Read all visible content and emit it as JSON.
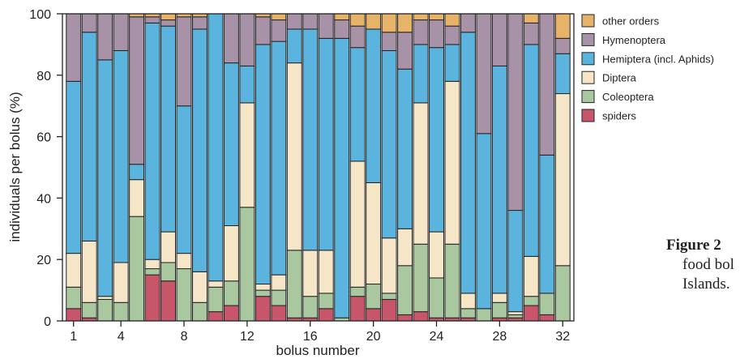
{
  "chart_data": {
    "type": "bar",
    "stacked": true,
    "percent": true,
    "xlabel": "bolus number",
    "ylabel": "individuals per bolus (%)",
    "ylim": [
      0,
      100
    ],
    "yticks": [
      0,
      20,
      40,
      60,
      80,
      100
    ],
    "xticks": [
      1,
      4,
      8,
      12,
      16,
      20,
      24,
      28,
      32
    ],
    "grid": false,
    "legend_position": "right",
    "categories": [
      1,
      2,
      3,
      4,
      5,
      6,
      7,
      8,
      9,
      10,
      11,
      12,
      13,
      14,
      15,
      16,
      17,
      18,
      19,
      20,
      21,
      22,
      23,
      24,
      25,
      26,
      27,
      28,
      29,
      30,
      31,
      32
    ],
    "series": [
      {
        "name": "spiders",
        "color": "#c8566a",
        "values": [
          4,
          1,
          0,
          0,
          0,
          15,
          13,
          0,
          0,
          3,
          5,
          0,
          8,
          5,
          1,
          1,
          4,
          0,
          8,
          4,
          7,
          2,
          3,
          1,
          1,
          1,
          0,
          1,
          1,
          5,
          2,
          0
        ]
      },
      {
        "name": "Coleoptera",
        "color": "#a9c89f",
        "values": [
          7,
          5,
          7,
          6,
          34,
          2,
          6,
          17,
          6,
          8,
          8,
          37,
          2,
          5,
          22,
          7,
          5,
          1,
          3,
          8,
          2,
          16,
          22,
          13,
          24,
          3,
          4,
          5,
          1,
          3,
          7,
          18
        ]
      },
      {
        "name": "Diptera",
        "color": "#f5e6c8",
        "values": [
          11,
          20,
          1,
          13,
          12,
          3,
          10,
          5,
          10,
          2,
          18,
          34,
          2,
          5,
          61,
          15,
          14,
          0,
          41,
          33,
          18,
          12,
          46,
          15,
          53,
          5,
          0,
          3,
          1,
          13,
          0,
          56
        ]
      },
      {
        "name": "Hemiptera (incl. Aphids)",
        "color": "#5ab4dd",
        "values": [
          56,
          68,
          77,
          69,
          5,
          77,
          67,
          48,
          79,
          87,
          53,
          12,
          78,
          76,
          11,
          72,
          69,
          91,
          37,
          50,
          61,
          52,
          19,
          60,
          12,
          85,
          57,
          74,
          33,
          69,
          45,
          13
        ]
      },
      {
        "name": "Hymenoptera",
        "color": "#a892a8",
        "values": [
          22,
          6,
          15,
          12,
          48,
          2,
          2,
          29,
          4,
          0,
          16,
          17,
          9,
          7,
          5,
          5,
          8,
          6,
          7,
          0,
          6,
          12,
          8,
          9,
          6,
          6,
          39,
          17,
          64,
          7,
          46,
          5
        ]
      },
      {
        "name": "other orders",
        "color": "#e7b368",
        "values": [
          0,
          0,
          0,
          0,
          1,
          1,
          2,
          1,
          1,
          0,
          0,
          0,
          1,
          2,
          0,
          0,
          0,
          2,
          4,
          5,
          6,
          6,
          2,
          2,
          4,
          0,
          0,
          0,
          0,
          3,
          0,
          8
        ]
      }
    ]
  },
  "caption": {
    "label": "Figure 2",
    "line2": "food bol",
    "line3": "Islands."
  }
}
